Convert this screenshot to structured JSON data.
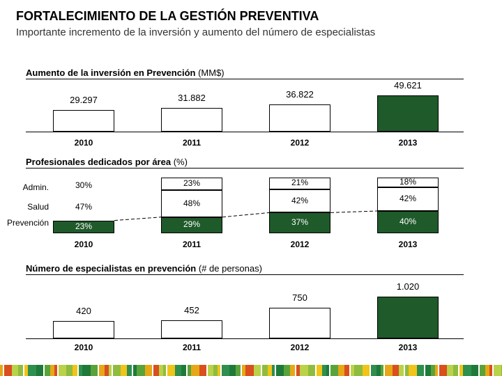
{
  "title": "FORTALECIMIENTO DE LA GESTIÓN PREVENTIVA",
  "subtitle": "Importante incremento de la inversión y aumento del número de especialistas",
  "colors": {
    "highlight": "#1f5a2a",
    "bar_fill": "#ffffff",
    "stripe": [
      "#e6a817",
      "#8fbc3f",
      "#1f7a3a",
      "#d94f1e",
      "#f0c419",
      "#5aa33a",
      "#b8d24a",
      "#2f8f4e"
    ]
  },
  "chart_data": [
    {
      "type": "bar",
      "title_bold": "Aumento de la inversión en Prevención",
      "title_unit": "(MM$)",
      "categories": [
        "2010",
        "2011",
        "2012",
        "2013"
      ],
      "values": [
        29297,
        31882,
        36822,
        49621
      ],
      "value_labels": [
        "29.297",
        "31.882",
        "36.822",
        "49.621"
      ],
      "highlight": [
        false,
        false,
        false,
        true
      ],
      "ylim": [
        0,
        55000
      ]
    },
    {
      "type": "table",
      "title_bold": "Profesionales dedicados por área",
      "title_unit": "(%)",
      "categories": [
        "2010",
        "2011",
        "2012",
        "2013"
      ],
      "rows": [
        "Admin.",
        "Salud",
        "Prevención"
      ],
      "series": [
        {
          "name": "Admin.",
          "values": [
            30,
            23,
            21,
            18
          ],
          "labels": [
            "30%",
            "23%",
            "21%",
            "18%"
          ]
        },
        {
          "name": "Salud",
          "values": [
            47,
            48,
            42,
            42
          ],
          "labels": [
            "47%",
            "48%",
            "42%",
            "42%"
          ]
        },
        {
          "name": "Prevención",
          "values": [
            23,
            29,
            37,
            40
          ],
          "labels": [
            "23%",
            "29%",
            "37%",
            "40%"
          ]
        }
      ]
    },
    {
      "type": "bar",
      "title_bold": "Número de especialistas en prevención",
      "title_unit": "(# de personas)",
      "categories": [
        "2010",
        "2011",
        "2012",
        "2013"
      ],
      "values": [
        420,
        452,
        750,
        1020
      ],
      "value_labels": [
        "420",
        "452",
        "750",
        "1.020"
      ],
      "highlight": [
        false,
        false,
        false,
        true
      ],
      "ylim": [
        0,
        1130
      ]
    }
  ]
}
